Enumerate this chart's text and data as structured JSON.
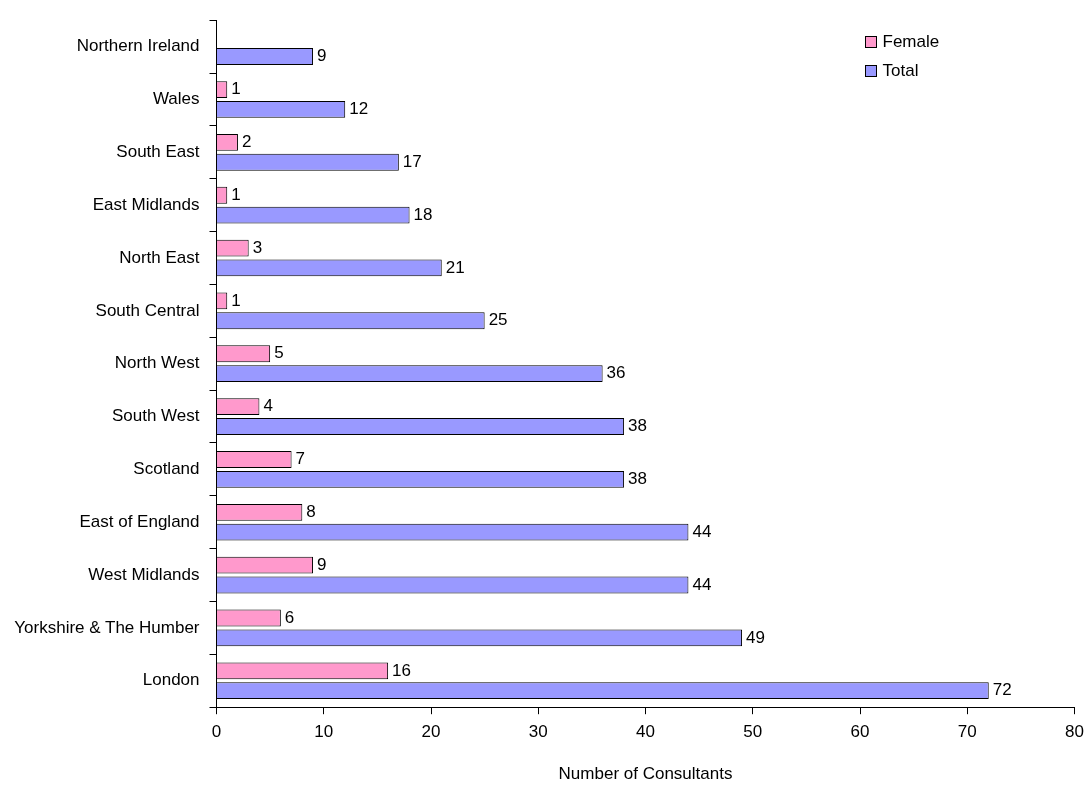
{
  "chart_data": {
    "type": "bar",
    "orientation": "horizontal",
    "xlabel": "Number of Consultants",
    "categories": [
      "Northern Ireland",
      "Wales",
      "South East",
      "East Midlands",
      "North East",
      "South Central",
      "North West",
      "South West",
      "Scotland",
      "East of England",
      "West Midlands",
      "Yorkshire & The Humber",
      "London"
    ],
    "series": [
      {
        "name": "Female",
        "color": "#ff99cc",
        "values": [
          null,
          1,
          2,
          1,
          3,
          1,
          5,
          4,
          7,
          8,
          9,
          6,
          16
        ]
      },
      {
        "name": "Total",
        "color": "#9999ff",
        "values": [
          9,
          12,
          17,
          18,
          21,
          25,
          36,
          38,
          38,
          44,
          44,
          49,
          72
        ]
      }
    ],
    "xlim": [
      0,
      80
    ],
    "xticks": [
      0,
      10,
      20,
      30,
      40,
      50,
      60,
      70,
      80
    ],
    "grid": false,
    "legend": "top right",
    "data_labels": true
  }
}
